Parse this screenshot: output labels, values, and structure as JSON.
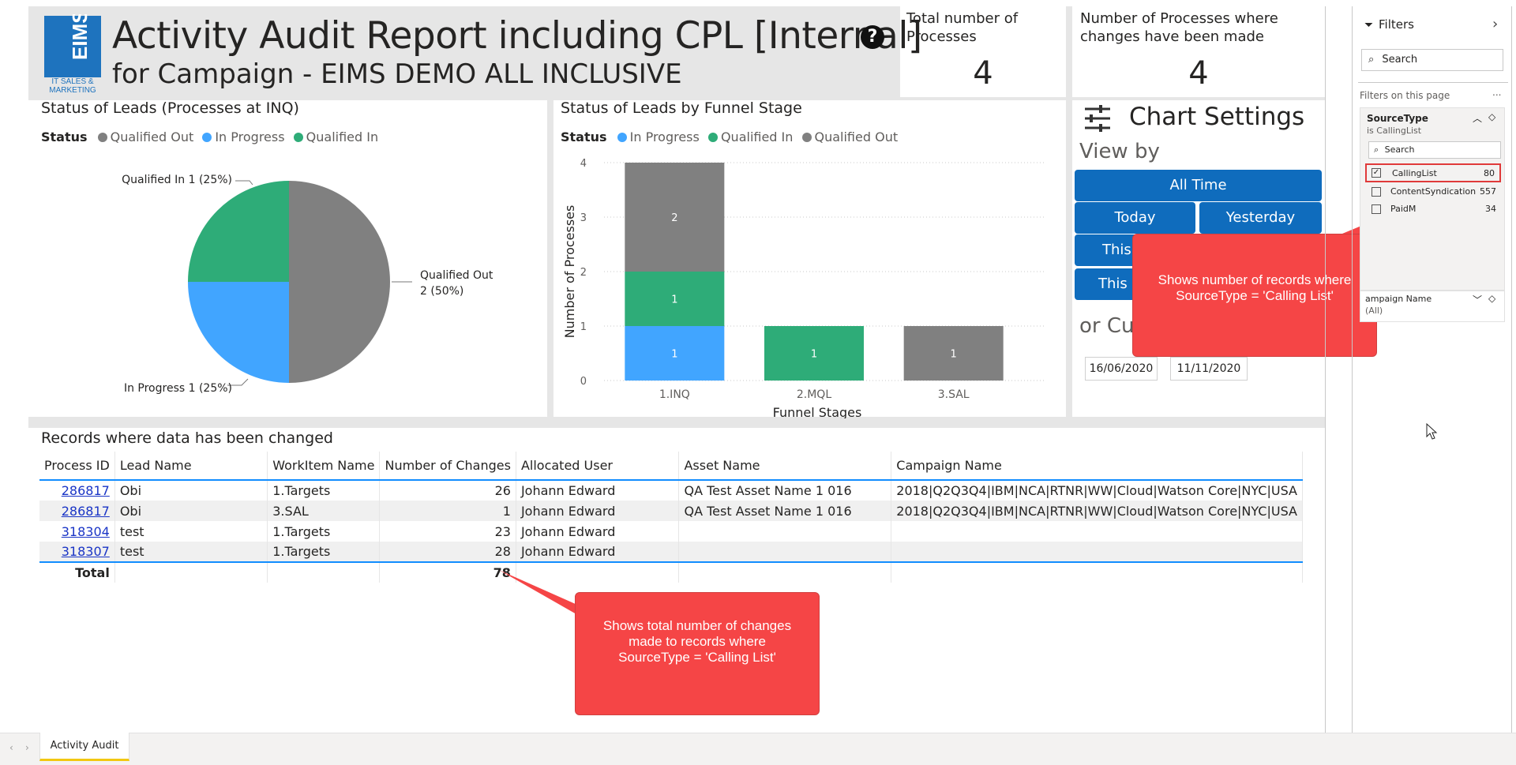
{
  "report": {
    "logo_text": "EIMS",
    "logo_sub1": "IT SALES &",
    "logo_sub2": "MARKETING",
    "title": "Activity Audit Report including CPL [Internal]",
    "subtitle": "for Campaign - EIMS DEMO ALL INCLUSIVE",
    "help_glyph": "?"
  },
  "cards": {
    "total_processes": {
      "label": "Total number of Processes",
      "value": "4"
    },
    "changed_processes": {
      "label": "Number of Processes where changes have been made",
      "value": "4"
    }
  },
  "pie_panel": {
    "title": "Status of Leads (Processes at INQ)",
    "legend_title": "Status",
    "legend": [
      {
        "name": "Qualified Out",
        "color": "#808080"
      },
      {
        "name": "In Progress",
        "color": "#41a5ff"
      },
      {
        "name": "Qualified In",
        "color": "#2eac78"
      }
    ],
    "labels": {
      "qualified_in": "Qualified In 1 (25%)",
      "qualified_out_1": "Qualified Out",
      "qualified_out_2": "2 (50%)",
      "in_progress": "In Progress 1 (25%)"
    }
  },
  "bar_panel": {
    "title": "Status of Leads by Funnel Stage",
    "legend_title": "Status",
    "legend": [
      {
        "name": "In Progress",
        "color": "#41a5ff"
      },
      {
        "name": "Qualified In",
        "color": "#2eac78"
      },
      {
        "name": "Qualified Out",
        "color": "#808080"
      }
    ]
  },
  "chart_data": [
    {
      "type": "pie",
      "title": "Status of Leads (Processes at INQ)",
      "labels": [
        "Qualified Out",
        "In Progress",
        "Qualified In"
      ],
      "values": [
        2,
        1,
        1
      ],
      "percent": [
        50,
        25,
        25
      ],
      "colors": [
        "#808080",
        "#41a5ff",
        "#2eac78"
      ],
      "legend": "top-left"
    },
    {
      "type": "bar",
      "stacked": true,
      "title": "Status of Leads by Funnel Stage",
      "categories": [
        "1.INQ",
        "2.MQL",
        "3.SAL"
      ],
      "series": [
        {
          "name": "In Progress",
          "values": [
            1,
            0,
            0
          ],
          "color": "#41a5ff"
        },
        {
          "name": "Qualified In",
          "values": [
            1,
            1,
            0
          ],
          "color": "#2eac78"
        },
        {
          "name": "Qualified Out",
          "values": [
            2,
            0,
            1
          ],
          "color": "#808080"
        }
      ],
      "xlabel": "Funnel Stages",
      "ylabel": "Number of Processes",
      "ylim": [
        0,
        4
      ],
      "yticks": [
        "0",
        "1",
        "2",
        "3",
        "4"
      ],
      "grid": true,
      "legend": "top-left"
    }
  ],
  "settings": {
    "title": "Chart Settings",
    "view_by": "View by",
    "all_time": "All Time",
    "today": "Today",
    "yesterday": "Yesterday",
    "this_1": "This",
    "this_2": "This",
    "or_custom": "or Cus",
    "date_from": "16/06/2020",
    "date_to": "11/11/2020"
  },
  "table": {
    "title": "Records where data has been changed",
    "columns": [
      "Process ID",
      "Lead Name",
      "WorkItem Name",
      "Number of Changes",
      "Allocated User",
      "Asset Name",
      "Campaign Name"
    ],
    "rows": [
      [
        "286817",
        "Obi",
        "1.Targets",
        "26",
        "Johann Edward",
        "QA Test Asset Name 1 016",
        "2018|Q2Q3Q4|IBM|NCA|RTNR|WW|Cloud|Watson Core|NYC|USA"
      ],
      [
        "286817",
        "Obi",
        "3.SAL",
        "1",
        "Johann Edward",
        "QA Test Asset Name 1 016",
        "2018|Q2Q3Q4|IBM|NCA|RTNR|WW|Cloud|Watson Core|NYC|USA"
      ],
      [
        "318304",
        "test",
        "1.Targets",
        "23",
        "Johann Edward",
        "",
        ""
      ],
      [
        "318307",
        "test",
        "1.Targets",
        "28",
        "Johann Edward",
        "",
        ""
      ]
    ],
    "total_label": "Total",
    "total_value": "78"
  },
  "callouts": {
    "records": "Shows number of records where SourceType = 'Calling List'",
    "changes": "Shows total number of changes made to records where SourceType = 'Calling List'"
  },
  "filters": {
    "header": "Filters",
    "search_placeholder": "Search",
    "on_page": "Filters on this page",
    "more": "...",
    "source_type": {
      "title": "SourceType",
      "subtitle": "is CallingList",
      "search": "Search",
      "items": [
        {
          "label": "CallingList",
          "count": "80",
          "checked": true
        },
        {
          "label": "ContentSyndication",
          "count": "557",
          "checked": false
        },
        {
          "label": "PaidM",
          "count": "34",
          "checked": false
        }
      ]
    },
    "campaign": {
      "title": "ampaign Name",
      "value": "(All)"
    }
  },
  "tabs": {
    "active": "Activity Audit"
  }
}
